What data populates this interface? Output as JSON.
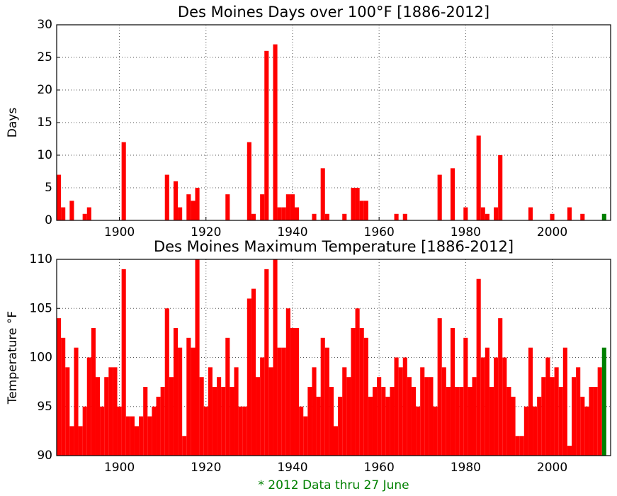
{
  "chart_data": [
    {
      "type": "bar",
      "title": "Des Moines Days over 100°F [1886-2012]",
      "ylabel": "Days",
      "color": "#ff0000",
      "highlight": {
        "x": 2012,
        "color": "#008000"
      },
      "grid": true,
      "x": [
        1886,
        1887,
        1888,
        1889,
        1890,
        1891,
        1892,
        1893,
        1894,
        1895,
        1896,
        1897,
        1898,
        1899,
        1900,
        1901,
        1902,
        1903,
        1904,
        1905,
        1906,
        1907,
        1908,
        1909,
        1910,
        1911,
        1912,
        1913,
        1914,
        1915,
        1916,
        1917,
        1918,
        1919,
        1920,
        1921,
        1922,
        1923,
        1924,
        1925,
        1926,
        1927,
        1928,
        1929,
        1930,
        1931,
        1932,
        1933,
        1934,
        1935,
        1936,
        1937,
        1938,
        1939,
        1940,
        1941,
        1942,
        1943,
        1944,
        1945,
        1946,
        1947,
        1948,
        1949,
        1950,
        1951,
        1952,
        1953,
        1954,
        1955,
        1956,
        1957,
        1958,
        1959,
        1960,
        1961,
        1962,
        1963,
        1964,
        1965,
        1966,
        1967,
        1968,
        1969,
        1970,
        1971,
        1972,
        1973,
        1974,
        1975,
        1976,
        1977,
        1978,
        1979,
        1980,
        1981,
        1982,
        1983,
        1984,
        1985,
        1986,
        1987,
        1988,
        1989,
        1990,
        1991,
        1992,
        1993,
        1994,
        1995,
        1996,
        1997,
        1998,
        1999,
        2000,
        2001,
        2002,
        2003,
        2004,
        2005,
        2006,
        2007,
        2008,
        2009,
        2010,
        2011,
        2012
      ],
      "values": [
        7,
        2,
        0,
        3,
        0,
        0,
        1,
        2,
        0,
        0,
        0,
        0,
        0,
        0,
        0,
        12,
        0,
        0,
        0,
        0,
        0,
        0,
        0,
        0,
        0,
        7,
        0,
        6,
        2,
        0,
        4,
        3,
        5,
        0,
        0,
        0,
        0,
        0,
        0,
        4,
        0,
        0,
        0,
        0,
        12,
        1,
        0,
        4,
        26,
        0,
        27,
        2,
        2,
        4,
        4,
        2,
        0,
        0,
        0,
        1,
        0,
        8,
        1,
        0,
        0,
        0,
        1,
        0,
        5,
        5,
        3,
        3,
        0,
        0,
        0,
        0,
        0,
        0,
        1,
        0,
        1,
        0,
        0,
        0,
        0,
        0,
        0,
        0,
        7,
        0,
        0,
        8,
        0,
        0,
        2,
        0,
        0,
        13,
        2,
        1,
        0,
        2,
        10,
        0,
        0,
        0,
        0,
        0,
        0,
        2,
        0,
        0,
        0,
        0,
        1,
        0,
        0,
        0,
        2,
        0,
        0,
        1,
        0,
        0,
        0,
        0,
        1
      ],
      "xlim": [
        1885.5,
        2013.5
      ],
      "xticks": [
        1900,
        1920,
        1940,
        1960,
        1980,
        2000
      ],
      "ylim": [
        0,
        30
      ],
      "yticks": [
        0,
        5,
        10,
        15,
        20,
        25,
        30
      ]
    },
    {
      "type": "bar",
      "title": "Des Moines Maximum Temperature [1886-2012]",
      "ylabel": "Temperature °F",
      "color": "#ff0000",
      "highlight": {
        "x": 2012,
        "color": "#008000"
      },
      "grid": true,
      "x": [
        1886,
        1887,
        1888,
        1889,
        1890,
        1891,
        1892,
        1893,
        1894,
        1895,
        1896,
        1897,
        1898,
        1899,
        1900,
        1901,
        1902,
        1903,
        1904,
        1905,
        1906,
        1907,
        1908,
        1909,
        1910,
        1911,
        1912,
        1913,
        1914,
        1915,
        1916,
        1917,
        1918,
        1919,
        1920,
        1921,
        1922,
        1923,
        1924,
        1925,
        1926,
        1927,
        1928,
        1929,
        1930,
        1931,
        1932,
        1933,
        1934,
        1935,
        1936,
        1937,
        1938,
        1939,
        1940,
        1941,
        1942,
        1943,
        1944,
        1945,
        1946,
        1947,
        1948,
        1949,
        1950,
        1951,
        1952,
        1953,
        1954,
        1955,
        1956,
        1957,
        1958,
        1959,
        1960,
        1961,
        1962,
        1963,
        1964,
        1965,
        1966,
        1967,
        1968,
        1969,
        1970,
        1971,
        1972,
        1973,
        1974,
        1975,
        1976,
        1977,
        1978,
        1979,
        1980,
        1981,
        1982,
        1983,
        1984,
        1985,
        1986,
        1987,
        1988,
        1989,
        1990,
        1991,
        1992,
        1993,
        1994,
        1995,
        1996,
        1997,
        1998,
        1999,
        2000,
        2001,
        2002,
        2003,
        2004,
        2005,
        2006,
        2007,
        2008,
        2009,
        2010,
        2011,
        2012
      ],
      "values": [
        104,
        102,
        99,
        93,
        101,
        93,
        95,
        100,
        103,
        98,
        95,
        98,
        99,
        99,
        95,
        109,
        94,
        94,
        93,
        94,
        97,
        94,
        95,
        96,
        97,
        105,
        98,
        103,
        101,
        92,
        102,
        101,
        110,
        98,
        95,
        99,
        97,
        98,
        97,
        102,
        97,
        99,
        95,
        95,
        106,
        107,
        98,
        100,
        109,
        99,
        110,
        101,
        101,
        105,
        103,
        103,
        95,
        94,
        97,
        99,
        96,
        102,
        101,
        97,
        93,
        96,
        99,
        98,
        103,
        105,
        103,
        102,
        96,
        97,
        98,
        97,
        96,
        97,
        100,
        99,
        100,
        98,
        97,
        95,
        99,
        98,
        98,
        95,
        104,
        99,
        97,
        103,
        97,
        97,
        102,
        97,
        98,
        108,
        100,
        101,
        97,
        100,
        104,
        100,
        97,
        96,
        92,
        92,
        95,
        101,
        95,
        96,
        98,
        100,
        98,
        99,
        97,
        101,
        91,
        98,
        99,
        96,
        95,
        97,
        97,
        99,
        101
      ],
      "xlim": [
        1885.5,
        2013.5
      ],
      "xticks": [
        1900,
        1920,
        1940,
        1960,
        1980,
        2000
      ],
      "ylim": [
        90,
        110
      ],
      "yticks": [
        90,
        95,
        100,
        105,
        110
      ]
    }
  ],
  "footnote": "* 2012 Data thru 27 June"
}
